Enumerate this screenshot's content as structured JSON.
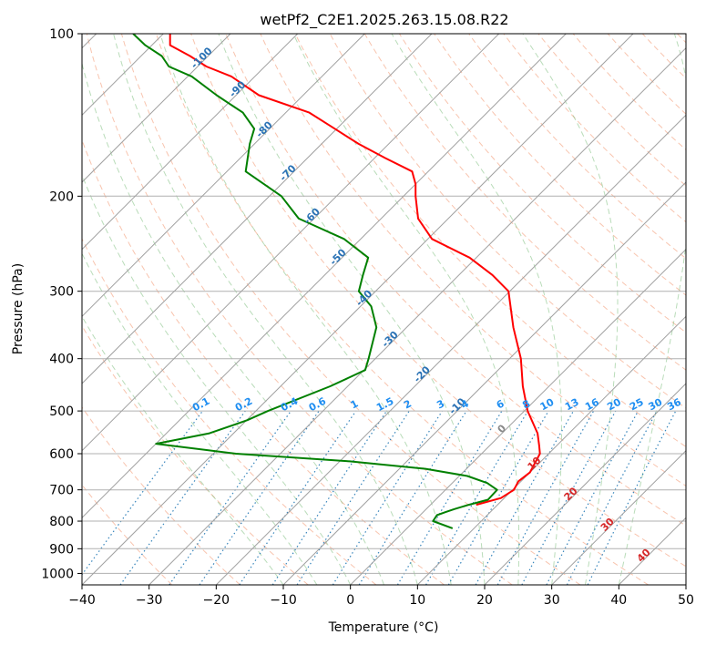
{
  "title": "wetPf2_C2E1.2025.263.15.08.R22",
  "chart_data": {
    "type": "line",
    "chart_kind": "skew-t log-p diagram",
    "title": "wetPf2_C2E1.2025.263.15.08.R22",
    "xlabel": "Temperature (°C)",
    "ylabel": "Pressure (hPa)",
    "xlim": [
      -40,
      50
    ],
    "ylim": [
      1050,
      100
    ],
    "y_scale": "log",
    "grid": true,
    "xticks": [
      -40,
      -30,
      -20,
      -10,
      0,
      10,
      20,
      30,
      40,
      50
    ],
    "yticks": [
      1000,
      900,
      800,
      700,
      600,
      500,
      400,
      300,
      200,
      100
    ],
    "series": [
      {
        "role": "temperature",
        "color": "#ff0000",
        "pressure": [
          746,
          725,
          700,
          675,
          650,
          600,
          580,
          550,
          500,
          450,
          400,
          350,
          300,
          280,
          260,
          240,
          220,
          200,
          190,
          180,
          170,
          160,
          150,
          140,
          130,
          120,
          115,
          110,
          105,
          100
        ],
        "temperature": [
          6.8,
          9.5,
          10.2,
          9.6,
          10.0,
          8.7,
          7.4,
          5.3,
          0.5,
          -3.9,
          -8.3,
          -14.1,
          -20.2,
          -25.0,
          -31.0,
          -39.4,
          -44.5,
          -48.2,
          -50.0,
          -52.4,
          -58.4,
          -64.5,
          -70.3,
          -76.5,
          -86.6,
          -93.5,
          -98.7,
          -102.7,
          -107.3,
          -109.0
        ]
      },
      {
        "role": "dewpoint",
        "color": "#008000",
        "pressure": [
          825,
          800,
          780,
          770,
          760,
          746,
          730,
          700,
          680,
          660,
          640,
          620,
          600,
          575,
          550,
          520,
          500,
          450,
          420,
          400,
          350,
          320,
          300,
          280,
          260,
          240,
          220,
          200,
          180,
          160,
          150,
          140,
          130,
          120,
          115,
          110,
          105,
          100
        ],
        "temperature": [
          6.8,
          2.8,
          2.5,
          3.3,
          4.2,
          5.7,
          7.8,
          7.7,
          5.2,
          1.2,
          -6.1,
          -18.5,
          -36.6,
          -50.0,
          -43.6,
          -39.9,
          -38.2,
          -32.6,
          -29.8,
          -31.0,
          -34.5,
          -38.4,
          -42.5,
          -44.3,
          -46.1,
          -52.5,
          -62.3,
          -68.2,
          -77.2,
          -80.7,
          -82.3,
          -86.4,
          -92.9,
          -99.4,
          -104.3,
          -106.9,
          -111.0,
          -114.5
        ]
      }
    ],
    "reference_lines": {
      "dry_adiabats": "dashed, salmon",
      "moist_adiabats": "dashed, light green",
      "mixing_ratio_lines": "dotted, blue",
      "isotherms": "solid, grey"
    },
    "isotherm_labels": [
      {
        "text": "-100",
        "t": -100,
        "p": 112
      },
      {
        "text": "-90",
        "t": -90,
        "p": 128
      },
      {
        "text": "-80",
        "t": -80,
        "p": 152
      },
      {
        "text": "-70",
        "t": -70,
        "p": 183
      },
      {
        "text": "-60",
        "t": -60,
        "p": 220
      },
      {
        "text": "-50",
        "t": -50,
        "p": 262
      },
      {
        "text": "-40",
        "t": -40,
        "p": 312
      },
      {
        "text": "-30",
        "t": -30,
        "p": 372
      },
      {
        "text": "-20",
        "t": -20,
        "p": 432
      },
      {
        "text": "-10",
        "t": -10,
        "p": 495
      },
      {
        "text": "0",
        "t": 0,
        "p": 545,
        "color": "#888888"
      },
      {
        "text": "10",
        "t": 10,
        "p": 632,
        "color": "#d62728"
      },
      {
        "text": "20",
        "t": 20,
        "p": 720,
        "color": "#d62728"
      },
      {
        "text": "30",
        "t": 30,
        "p": 820,
        "color": "#d62728"
      },
      {
        "text": "40",
        "t": 40,
        "p": 935,
        "color": "#d62728"
      }
    ],
    "mixing_ratio_labels": [
      "0.1",
      "0.2",
      "0.4",
      "0.6",
      "1",
      "1.5",
      "2",
      "3",
      "4",
      "6",
      "8",
      "10",
      "13",
      "16",
      "20",
      "25",
      "30",
      "36"
    ],
    "mixing_ratio_label_pressure": 500
  }
}
